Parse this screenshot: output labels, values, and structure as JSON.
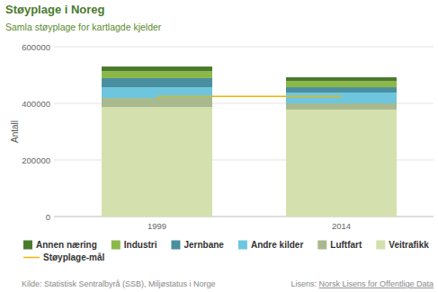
{
  "chart_data": {
    "type": "bar",
    "stacked": true,
    "title": "Støyplage i Noreg",
    "subtitle": "Samla støyplage for kartlagde kjelder",
    "y_label": "Antall",
    "categories": [
      "1999",
      "2014"
    ],
    "series": [
      {
        "name": "Veitrafikk",
        "color": "#d4e0ad",
        "values": [
          387000,
          378000
        ]
      },
      {
        "name": "Luftfart",
        "color": "#a9b98e",
        "values": [
          32000,
          22000
        ]
      },
      {
        "name": "Andre kilder",
        "color": "#6ec6de",
        "values": [
          38000,
          38000
        ]
      },
      {
        "name": "Jernbane",
        "color": "#4a8fa0",
        "values": [
          32000,
          19000
        ]
      },
      {
        "name": "Industri",
        "color": "#8cb84a",
        "values": [
          25000,
          22000
        ]
      },
      {
        "name": "Annen næring",
        "color": "#4a7a2e",
        "values": [
          16000,
          13000
        ]
      },
      {
        "name": "Støyplage-mål",
        "type": "line",
        "color": "#f0b400",
        "values": [
          425000,
          425000
        ]
      }
    ],
    "ylim": [
      0,
      600000
    ],
    "yticks": [
      0,
      200000,
      400000,
      600000
    ],
    "grid": true,
    "legend": "bottom",
    "source": "Kilde: Statistisk Sentralbyrå (SSB), Miljøstatus i Norge",
    "license": "Lisens: ",
    "license_name": "Norsk Lisens for Offentlige Data"
  }
}
